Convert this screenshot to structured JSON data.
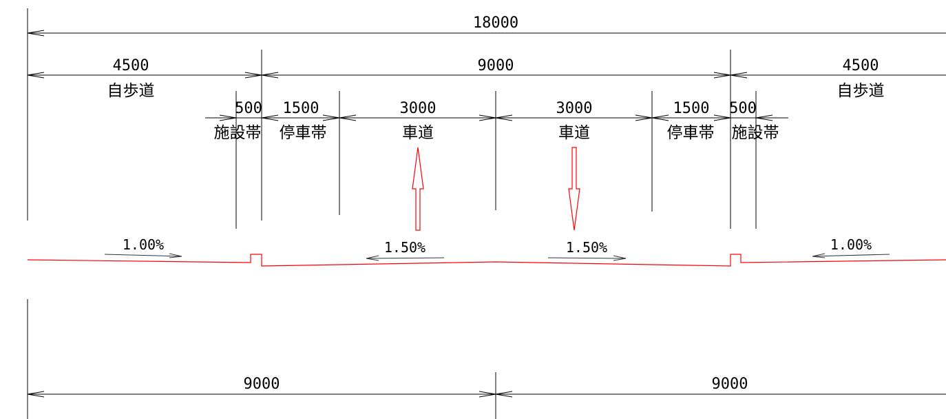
{
  "dimensions": {
    "total": "18000",
    "left_sidewalk": "4500",
    "carriageway": "9000",
    "right_sidewalk": "4500",
    "left_facility": "500",
    "left_parking": "1500",
    "left_lane": "3000",
    "right_lane": "3000",
    "right_parking": "1500",
    "right_facility": "500",
    "bottom_left_half": "9000",
    "bottom_right_half": "9000"
  },
  "labels": {
    "left_sidewalk": "自歩道",
    "right_sidewalk": "自歩道",
    "left_facility": "施設帯",
    "right_facility": "施設帯",
    "left_parking": "停車帯",
    "right_parking": "停車帯",
    "left_lane": "車道",
    "right_lane": "車道"
  },
  "slopes": {
    "left_sidewalk": "1.00%",
    "left_carriageway": "1.50%",
    "right_carriageway": "1.50%",
    "right_sidewalk": "1.00%"
  },
  "colors": {
    "dimension": "#000000",
    "road_profile": "#ff0000",
    "direction_arrow": "#ff0000"
  },
  "icons": {
    "left_lane_direction": "arrow-up-icon",
    "right_lane_direction": "arrow-down-icon"
  }
}
